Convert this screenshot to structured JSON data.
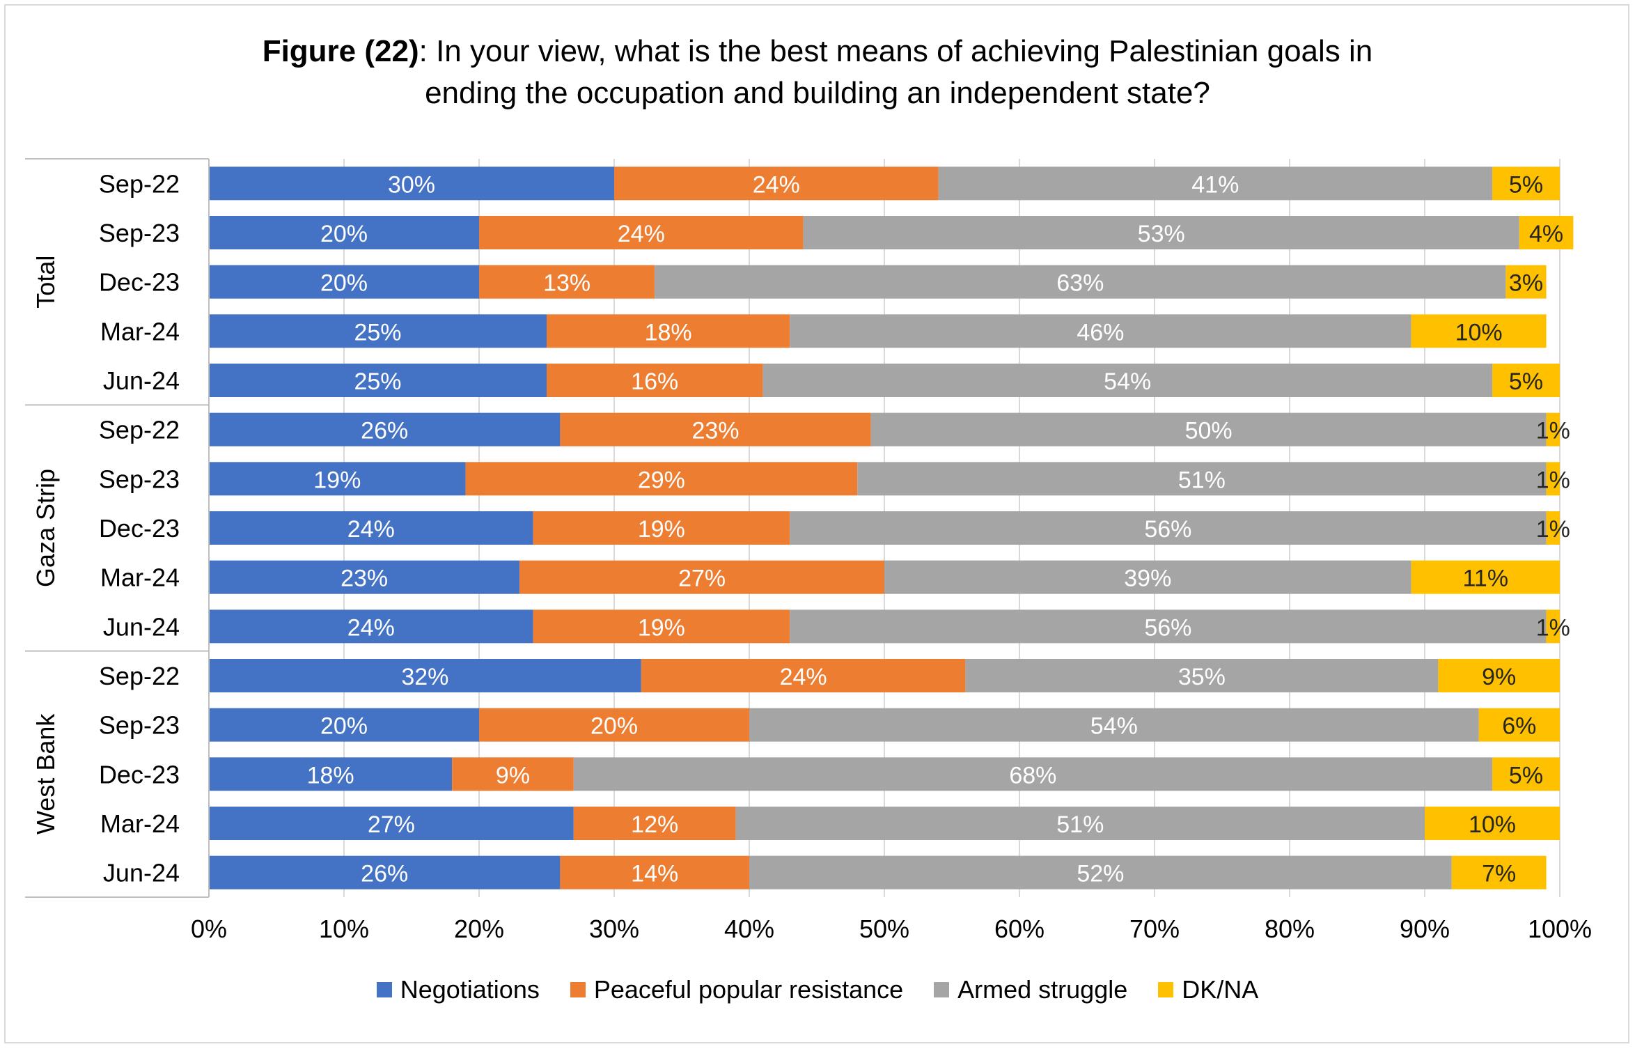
{
  "title": {
    "bold": "Figure (22)",
    "line1": ": In your view, what is the best means of achieving Palestinian goals in",
    "line2": "ending the occupation and building an independent state?"
  },
  "chart_data": {
    "type": "bar",
    "orientation": "horizontal",
    "stacked": "percent",
    "xlim": [
      0,
      100
    ],
    "x_ticks": [
      "0%",
      "10%",
      "20%",
      "30%",
      "40%",
      "50%",
      "60%",
      "70%",
      "80%",
      "90%",
      "100%"
    ],
    "grid": true,
    "legend_position": "bottom",
    "groups": [
      {
        "name": "Total",
        "categories": [
          "Sep-22",
          "Sep-23",
          "Dec-23",
          "Mar-24",
          "Jun-24"
        ]
      },
      {
        "name": "Gaza Strip",
        "categories": [
          "Sep-22",
          "Sep-23",
          "Dec-23",
          "Mar-24",
          "Jun-24"
        ]
      },
      {
        "name": "West Bank",
        "categories": [
          "Sep-22",
          "Sep-23",
          "Dec-23",
          "Mar-24",
          "Jun-24"
        ]
      }
    ],
    "series": [
      {
        "name": "Negotiations",
        "color": "#4472c4",
        "label_color": "#ffffff",
        "values": [
          30,
          20,
          20,
          25,
          25,
          26,
          19,
          24,
          23,
          24,
          32,
          20,
          18,
          27,
          26
        ]
      },
      {
        "name": "Peaceful popular resistance",
        "color": "#ed7d31",
        "label_color": "#ffffff",
        "values": [
          24,
          24,
          13,
          18,
          16,
          23,
          29,
          19,
          27,
          19,
          24,
          20,
          9,
          12,
          14
        ]
      },
      {
        "name": "Armed struggle",
        "color": "#a5a5a5",
        "label_color": "#ffffff",
        "values": [
          41,
          53,
          63,
          46,
          54,
          50,
          51,
          56,
          39,
          56,
          35,
          54,
          68,
          51,
          52
        ]
      },
      {
        "name": "DK/NA",
        "color": "#ffc000",
        "label_color": "#262626",
        "values": [
          5,
          4,
          3,
          10,
          5,
          1,
          1,
          1,
          11,
          1,
          9,
          6,
          5,
          10,
          7
        ]
      }
    ]
  }
}
